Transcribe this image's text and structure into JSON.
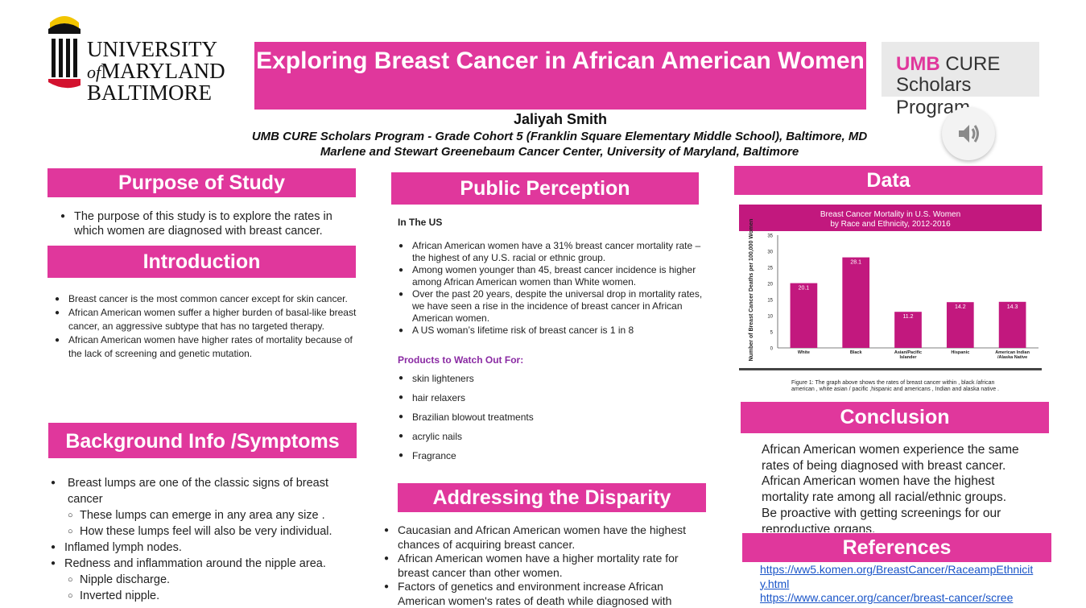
{
  "header": {
    "logo": {
      "line1": "UNIVERSITY",
      "line2_of": "of",
      "line2": "MARYLAND",
      "line3": "BALTIMORE"
    },
    "title": "Exploring Breast Cancer in African American Women",
    "program_logo": {
      "line1_accent": "UMB",
      "line1_rest": "CURE",
      "line2": "Scholars Program"
    },
    "author": "Jaliyah Smith",
    "affiliation1": "UMB CURE Scholars Program - Grade Cohort 5  (Franklin Square Elementary Middle School), Baltimore, MD",
    "affiliation2": "Marlene and Stewart Greenebaum Cancer Center, University of Maryland, Baltimore",
    "speaker_icon": "speaker-icon"
  },
  "purpose": {
    "heading": "Purpose of Study",
    "items": [
      "The purpose of this study is to explore the rates in which women are diagnosed with breast cancer."
    ]
  },
  "introduction": {
    "heading": "Introduction",
    "items": [
      "Breast cancer is the most common cancer except for skin cancer.",
      "African American women suffer a higher burden of basal-like breast cancer, an aggressive subtype that has no targeted therapy.",
      "African American women have higher rates of mortality because of the lack of screening and genetic mutation."
    ]
  },
  "background": {
    "heading": "Background Info /Symptoms",
    "item1": "Breast lumps are one of the classic signs of breast cancer",
    "item1_sub": [
      "These lumps can emerge in any area any  size .",
      "How these lumps feel will also be very individual."
    ],
    "item2": "Inflamed lymph nodes.",
    "item3": "Redness and inflammation around the nipple area.",
    "item3_sub": [
      "Nipple discharge.",
      "Inverted nipple."
    ]
  },
  "perception": {
    "heading": "Public Perception",
    "subhead": "In The US",
    "items": [
      "African American women have a 31% breast cancer mortality rate – the highest of any U.S. racial or ethnic group.",
      "Among women younger than 45, breast cancer incidence is higher among African American women than White women.",
      "Over the past 20 years, despite the universal drop in mortality rates, we have seen a rise in the incidence of breast cancer in African American women.",
      "A US woman’s lifetime risk of breast cancer is 1 in 8"
    ],
    "products_head": "Products to Watch Out For:",
    "products": [
      "skin lighteners",
      "hair relaxers",
      "Brazilian blowout treatments",
      "acrylic nails",
      "Fragrance"
    ]
  },
  "disparity": {
    "heading": "Addressing the Disparity",
    "items": [
      "Caucasian and African American women have the highest chances of acquiring breast cancer.",
      "African American women have a higher mortality rate for breast cancer than other women.",
      "Factors of genetics and environment increase African American women's rates of death while diagnosed with"
    ]
  },
  "data_section": {
    "heading": "Data",
    "caption": "Figure 1:  The graph above shows the rates of  breast cancer within , black /african american , white asian / pacific  ,hispanic and americans , Indian   and alaska native ."
  },
  "chart_data": {
    "type": "bar",
    "title": "Breast Cancer Mortality in U.S. Women by Race and Ethnicity, 2012-2016",
    "title_line1": "Breast Cancer Mortality in U.S. Women",
    "title_line2": "by Race and Ethnicity, 2012-2016",
    "ylabel": "Number of Breast Cancer Deaths per 100,000 Women",
    "categories": [
      "White",
      "Black",
      "Asian/Pacific Islander",
      "Hispanic",
      "American Indian /Alaska Native"
    ],
    "category_lines": [
      [
        "White"
      ],
      [
        "Black"
      ],
      [
        "Asian/Pacific",
        "Islander"
      ],
      [
        "Hispanic"
      ],
      [
        "American Indian",
        "/Alaska Native"
      ]
    ],
    "values": [
      20.1,
      28.1,
      11.2,
      14.2,
      14.3
    ],
    "value_labels": [
      "20.1",
      "28.1",
      "11.2",
      "14.2",
      "14.3"
    ],
    "ylim": [
      0,
      35
    ],
    "yticks": [
      "0",
      "5",
      "10",
      "15",
      "20",
      "25",
      "30",
      "35"
    ],
    "bar_color": "#c2187e",
    "title_bg": "#c2187e",
    "grid": false,
    "legend": "none"
  },
  "conclusion": {
    "heading": "Conclusion",
    "items": [
      "African American women experience the same rates of being diagnosed with breast cancer.",
      "African American women have the highest mortality rate among all racial/ethnic groups.",
      "Be proactive with getting screenings for our reproductive organs."
    ]
  },
  "references": {
    "heading": "References",
    "links": [
      "https://ww5.komen.org/BreastCancer/RaceampEthnicity.html",
      "https://www.cancer.org/cancer/breast-cancer/scree"
    ]
  },
  "colors": {
    "accent": "#e0379c",
    "products_head": "#8a2aa3",
    "link": "#1a55c8"
  }
}
